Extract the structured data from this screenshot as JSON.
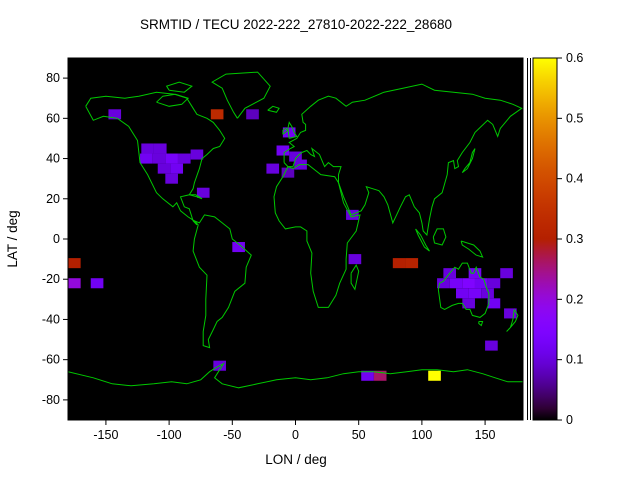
{
  "chart_data": {
    "type": "heatmap",
    "title": "SRMTID / TECU 2022-222_27810-2022-222_28680",
    "xlabel": "LON / deg",
    "ylabel": "LAT / deg",
    "xlim": [
      -180,
      180
    ],
    "ylim": [
      -90,
      90
    ],
    "x_ticks": [
      -150,
      -100,
      -50,
      0,
      50,
      100,
      150
    ],
    "y_ticks": [
      80,
      60,
      40,
      20,
      0,
      -20,
      -40,
      -60,
      -80
    ],
    "grid": false,
    "legend": "colorbar-right",
    "cell_size_deg": {
      "lon": 10,
      "lat": 5
    },
    "colorbar": {
      "min": 0,
      "max": 0.6,
      "tick_values": [
        0,
        0.1,
        0.2,
        0.3,
        0.4,
        0.5,
        0.6
      ],
      "tick_labels": [
        "0",
        "0.1",
        "0.2",
        "0.3",
        "0.4",
        "0.5",
        "0.6"
      ],
      "palette": "black-purple-red-orange-yellow"
    },
    "colors": {
      "plot_background": "#000000",
      "coastline": "#00c800",
      "page_background": "#ffffff",
      "text": "#000000"
    },
    "cells_format": [
      "lon_center_deg",
      "lat_center_deg",
      "tecu_value"
    ],
    "cells": [
      [
        -143,
        62,
        0.1
      ],
      [
        -62,
        62,
        0.33
      ],
      [
        -34,
        62,
        0.08
      ],
      [
        -5,
        53,
        0.12
      ],
      [
        -117,
        45,
        0.1
      ],
      [
        -107,
        45,
        0.1
      ],
      [
        -118,
        40,
        0.12
      ],
      [
        -108,
        40,
        0.1
      ],
      [
        -98,
        40,
        0.13
      ],
      [
        -88,
        40,
        0.1
      ],
      [
        -78,
        42,
        0.1
      ],
      [
        -104,
        35,
        0.1
      ],
      [
        -94,
        35,
        0.12
      ],
      [
        -98,
        30,
        0.1
      ],
      [
        -73,
        23,
        0.1
      ],
      [
        -18,
        35,
        0.1
      ],
      [
        -10,
        44,
        0.12
      ],
      [
        0,
        41,
        0.1
      ],
      [
        4,
        37,
        0.1
      ],
      [
        -6,
        33,
        0.08
      ],
      [
        45,
        12,
        0.1
      ],
      [
        -45,
        -4,
        0.12
      ],
      [
        47,
        -10,
        0.1
      ],
      [
        -175,
        -12,
        0.3
      ],
      [
        -175,
        -22,
        0.2
      ],
      [
        -157,
        -22,
        0.12
      ],
      [
        82,
        -12,
        0.3
      ],
      [
        92,
        -12,
        0.31
      ],
      [
        122,
        -17,
        0.1
      ],
      [
        142,
        -17,
        0.12
      ],
      [
        167,
        -17,
        0.1
      ],
      [
        117,
        -22,
        0.1
      ],
      [
        127,
        -22,
        0.13
      ],
      [
        137,
        -22,
        0.15
      ],
      [
        147,
        -22,
        0.12
      ],
      [
        157,
        -22,
        0.1
      ],
      [
        132,
        -27,
        0.12
      ],
      [
        142,
        -27,
        0.13
      ],
      [
        152,
        -27,
        0.1
      ],
      [
        137,
        -32,
        0.1
      ],
      [
        157,
        -32,
        0.12
      ],
      [
        170,
        -37,
        0.1
      ],
      [
        155,
        -53,
        0.1
      ],
      [
        -60,
        -63,
        0.1
      ],
      [
        57,
        -68,
        0.12
      ],
      [
        67,
        -68,
        0.26
      ],
      [
        110,
        -68,
        0.6
      ]
    ]
  }
}
